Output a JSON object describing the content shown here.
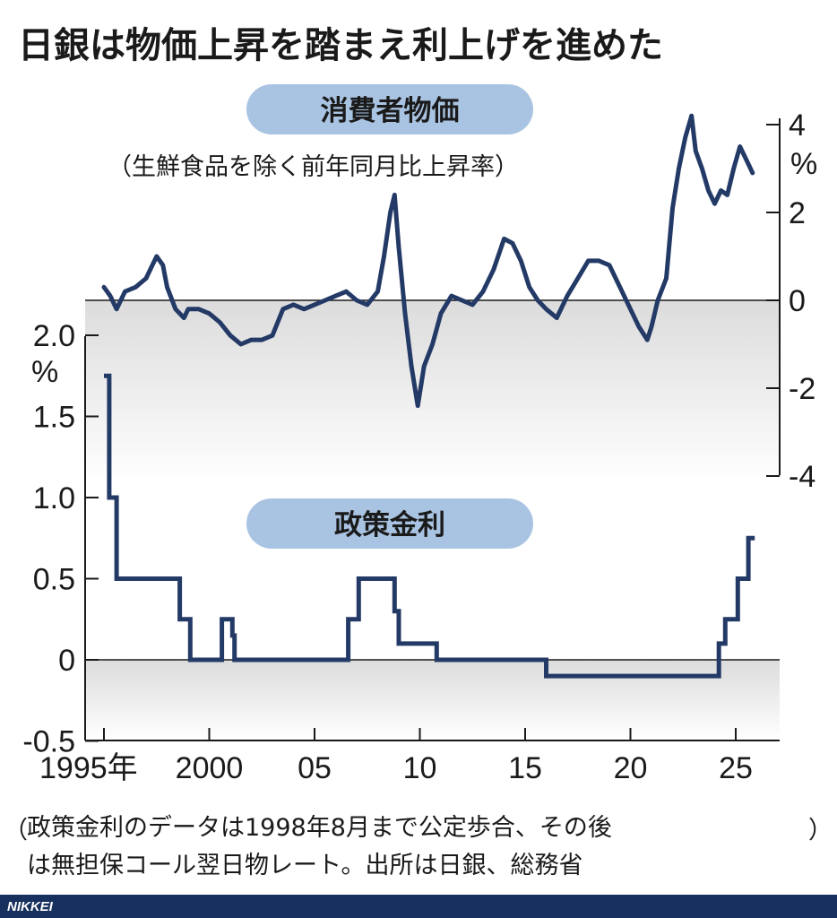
{
  "title": "日銀は物価上昇を踏まえ利上げを進めた",
  "note_line1": "政策金利のデータは1998年8月まで公定歩合、その後",
  "note_line2": "は無担保コール翌日物レート。出所は日銀、総務省",
  "brand": "NIKKEI",
  "colors": {
    "line": "#243a66",
    "pill": "#a9c4e2",
    "band": "#e4e4e4"
  },
  "x_tick_labels": [
    "1995年",
    "2000",
    "05",
    "10",
    "15",
    "20",
    "25"
  ],
  "x_tick_values": [
    1995,
    2000,
    2005,
    2010,
    2015,
    2020,
    2025
  ],
  "chart_data": [
    {
      "type": "line",
      "title": "消費者物価",
      "subtitle": "（生鮮食品を除く前年同月比上昇率）",
      "ylabel": "%",
      "ylim": [
        -4,
        4.5
      ],
      "y_ticks": [
        4,
        2,
        0,
        -2,
        -4
      ],
      "y_tick_labels": [
        "4",
        "2",
        "0",
        "-2",
        "-4"
      ],
      "x": [
        1995.0,
        1995.3,
        1995.6,
        1996.0,
        1996.5,
        1997.0,
        1997.3,
        1997.5,
        1997.8,
        1998.0,
        1998.4,
        1998.8,
        1999.0,
        1999.5,
        2000.0,
        2000.5,
        2001.0,
        2001.5,
        2002.0,
        2002.5,
        2003.0,
        2003.5,
        2004.0,
        2004.5,
        2005.0,
        2005.5,
        2006.0,
        2006.5,
        2007.0,
        2007.5,
        2008.0,
        2008.3,
        2008.6,
        2008.8,
        2009.0,
        2009.3,
        2009.6,
        2009.9,
        2010.2,
        2010.6,
        2011.0,
        2011.5,
        2012.0,
        2012.5,
        2013.0,
        2013.5,
        2014.0,
        2014.4,
        2014.8,
        2015.2,
        2015.6,
        2016.0,
        2016.5,
        2017.0,
        2017.5,
        2018.0,
        2018.5,
        2019.0,
        2019.5,
        2020.0,
        2020.4,
        2020.8,
        2021.0,
        2021.3,
        2021.7,
        2022.0,
        2022.3,
        2022.6,
        2022.9,
        2023.1,
        2023.4,
        2023.7,
        2024.0,
        2024.3,
        2024.6,
        2024.9,
        2025.2,
        2025.5,
        2025.8
      ],
      "values": [
        0.3,
        0.1,
        -0.2,
        0.2,
        0.3,
        0.5,
        0.8,
        1.0,
        0.8,
        0.3,
        -0.2,
        -0.4,
        -0.2,
        -0.2,
        -0.3,
        -0.5,
        -0.8,
        -1.0,
        -0.9,
        -0.9,
        -0.8,
        -0.2,
        -0.1,
        -0.2,
        -0.1,
        0.0,
        0.1,
        0.2,
        0.0,
        -0.1,
        0.2,
        1.0,
        2.0,
        2.4,
        1.2,
        -0.3,
        -1.5,
        -2.4,
        -1.5,
        -1.0,
        -0.3,
        0.1,
        0.0,
        -0.1,
        0.2,
        0.7,
        1.4,
        1.3,
        0.9,
        0.3,
        0.0,
        -0.2,
        -0.4,
        0.1,
        0.5,
        0.9,
        0.9,
        0.8,
        0.3,
        -0.2,
        -0.6,
        -0.9,
        -0.6,
        0.0,
        0.5,
        2.1,
        3.0,
        3.7,
        4.2,
        3.4,
        3.0,
        2.5,
        2.2,
        2.5,
        2.4,
        3.0,
        3.5,
        3.2,
        2.9
      ]
    },
    {
      "type": "line",
      "title": "政策金利",
      "ylabel": "%",
      "ylim": [
        -0.5,
        2.0
      ],
      "y_ticks": [
        2.0,
        1.5,
        1.0,
        0.5,
        0,
        -0.5
      ],
      "y_tick_labels": [
        "2.0",
        "1.5",
        "1.0",
        "0.5",
        "0",
        "-0.5"
      ],
      "step": true,
      "x": [
        1995.0,
        1995.25,
        1995.6,
        1998.6,
        1999.1,
        2000.6,
        2001.1,
        2001.2,
        2006.6,
        2007.1,
        2008.8,
        2009.0,
        2010.8,
        2016.0,
        2024.2,
        2024.5,
        2024.9,
        2025.1,
        2025.6
      ],
      "values": [
        1.75,
        1.0,
        0.5,
        0.25,
        0.0,
        0.25,
        0.15,
        0.0,
        0.25,
        0.5,
        0.3,
        0.1,
        0.0,
        -0.1,
        0.1,
        0.25,
        0.25,
        0.5,
        0.75
      ]
    }
  ]
}
